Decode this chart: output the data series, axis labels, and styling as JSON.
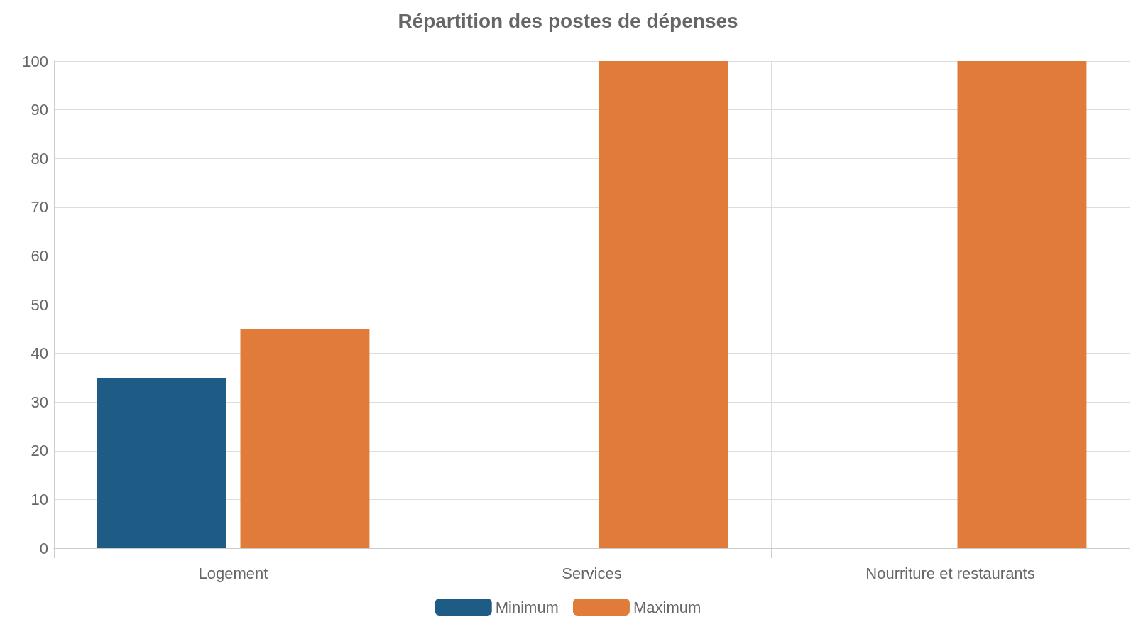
{
  "chart_data": {
    "type": "bar",
    "title": "Répartition des postes de dépenses",
    "categories": [
      "Logement",
      "Services",
      "Nourriture et restaurants"
    ],
    "series": [
      {
        "name": "Minimum",
        "color": "#1f5c85",
        "values": [
          35,
          null,
          null
        ]
      },
      {
        "name": "Maximum",
        "color": "#e07b3a",
        "values": [
          45,
          100,
          100
        ]
      }
    ],
    "ylim": [
      0,
      100
    ],
    "yticks": [
      0,
      10,
      20,
      30,
      40,
      50,
      60,
      70,
      80,
      90,
      100
    ],
    "grid": true,
    "legend": "bottom"
  }
}
